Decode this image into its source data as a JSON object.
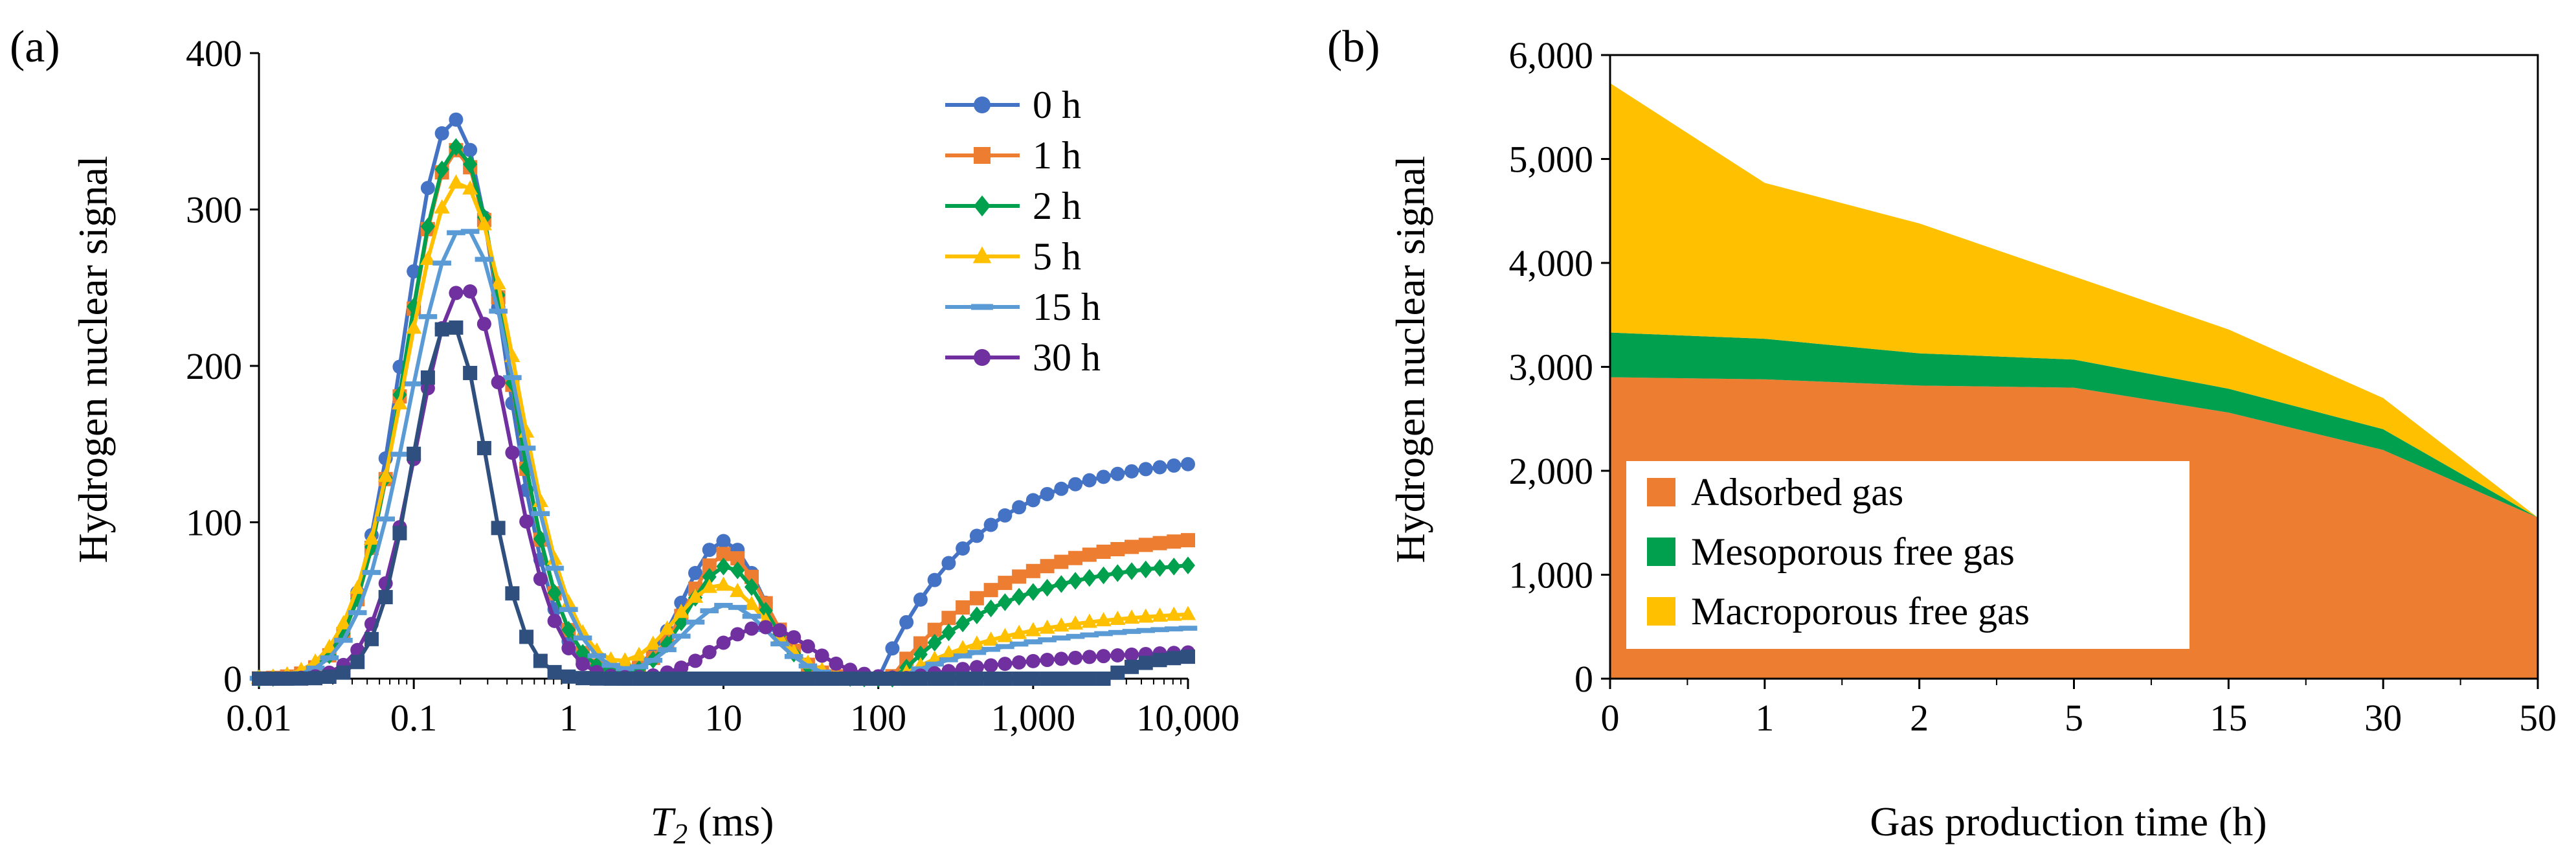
{
  "chart_data": [
    {
      "panel_label": "(a)",
      "type": "line",
      "x_scale": "log",
      "xlabel_main": "T",
      "xlabel_sub": "2",
      "xlabel_unit": " (ms)",
      "ylabel": "Hydrogen nuclear signal",
      "xlim": [
        0.01,
        10000
      ],
      "ylim": [
        0,
        400
      ],
      "xticks": [
        0.01,
        0.1,
        1,
        10,
        100,
        1000,
        10000
      ],
      "xtick_labels": [
        "0.01",
        "0.1",
        "1",
        "10",
        "100",
        "1,000",
        "10,000"
      ],
      "yticks": [
        0,
        100,
        200,
        300,
        400
      ],
      "ytick_labels": [
        "0",
        "100",
        "200",
        "300",
        "400"
      ],
      "legend_position": "top-right",
      "series": [
        {
          "name": "0 h",
          "color": "#4472C4",
          "marker": "circle",
          "peaks": [
            {
              "amp": 358,
              "center": 0.18,
              "sigma": 0.32
            },
            {
              "amp": 88,
              "center": 10,
              "sigma": 0.25
            }
          ],
          "plateau": {
            "amp": 143,
            "start": 100,
            "k": 1.6
          }
        },
        {
          "name": "1 h",
          "color": "#ED7D31",
          "marker": "square",
          "peaks": [
            {
              "amp": 338,
              "center": 0.19,
              "sigma": 0.33
            },
            {
              "amp": 80,
              "center": 10.5,
              "sigma": 0.25
            }
          ],
          "plateau": {
            "amp": 95,
            "start": 120,
            "k": 1.4
          }
        },
        {
          "name": "2 h",
          "color": "#00A04E",
          "marker": "diamond",
          "peaks": [
            {
              "amp": 340,
              "center": 0.19,
              "sigma": 0.33
            },
            {
              "amp": 72,
              "center": 10.5,
              "sigma": 0.25
            }
          ],
          "plateau": {
            "amp": 78,
            "start": 130,
            "k": 1.4
          }
        },
        {
          "name": "5 h",
          "color": "#FFC000",
          "marker": "triangle",
          "peaks": [
            {
              "amp": 318,
              "center": 0.2,
              "sigma": 0.36
            },
            {
              "amp": 60,
              "center": 9.5,
              "sigma": 0.3
            }
          ],
          "plateau": {
            "amp": 45,
            "start": 130,
            "k": 1.3
          }
        },
        {
          "name": "15 h",
          "color": "#5B9BD5",
          "marker": "dash",
          "peaks": [
            {
              "amp": 288,
              "center": 0.21,
              "sigma": 0.35
            },
            {
              "amp": 47,
              "center": 10.5,
              "sigma": 0.28
            }
          ],
          "plateau": {
            "amp": 36,
            "start": 130,
            "k": 1.2
          }
        },
        {
          "name": "30 h",
          "color": "#7030A0",
          "marker": "circle",
          "peaks": [
            {
              "amp": 250,
              "center": 0.21,
              "sigma": 0.3
            },
            {
              "amp": 33,
              "center": 18,
              "sigma": 0.3
            }
          ],
          "plateau": {
            "amp": 20,
            "start": 150,
            "k": 1.0
          }
        },
        {
          "name": "",
          "color": "#2F4F7F",
          "marker": "square",
          "peaks": [
            {
              "amp": 228,
              "center": 0.17,
              "sigma": 0.24
            }
          ],
          "plateau": {
            "amp": 16,
            "start": 3000,
            "k": 4.0
          }
        }
      ]
    },
    {
      "panel_label": "(b)",
      "type": "area",
      "stacked": true,
      "xlabel": "Gas production time (h)",
      "ylabel": "Hydrogen nuclear signal",
      "categories": [
        "0",
        "1",
        "2",
        "5",
        "15",
        "30",
        "50"
      ],
      "ylim": [
        0,
        6000
      ],
      "yticks": [
        0,
        1000,
        2000,
        3000,
        4000,
        5000,
        6000
      ],
      "ytick_labels": [
        "0",
        "1,000",
        "2,000",
        "3,000",
        "4,000",
        "5,000",
        "6,000"
      ],
      "legend_position": "bottom-left",
      "series": [
        {
          "name": "Adsorbed gas",
          "color": "#ED7D31",
          "values": [
            2900,
            2880,
            2820,
            2800,
            2560,
            2200,
            1550
          ]
        },
        {
          "name": "Mesoporous free gas",
          "color": "#00A04E",
          "values": [
            430,
            390,
            310,
            270,
            230,
            200,
            0
          ]
        },
        {
          "name": "Macroporous free gas",
          "color": "#FFC000",
          "values": [
            2400,
            1500,
            1250,
            800,
            570,
            300,
            0
          ]
        }
      ]
    }
  ]
}
